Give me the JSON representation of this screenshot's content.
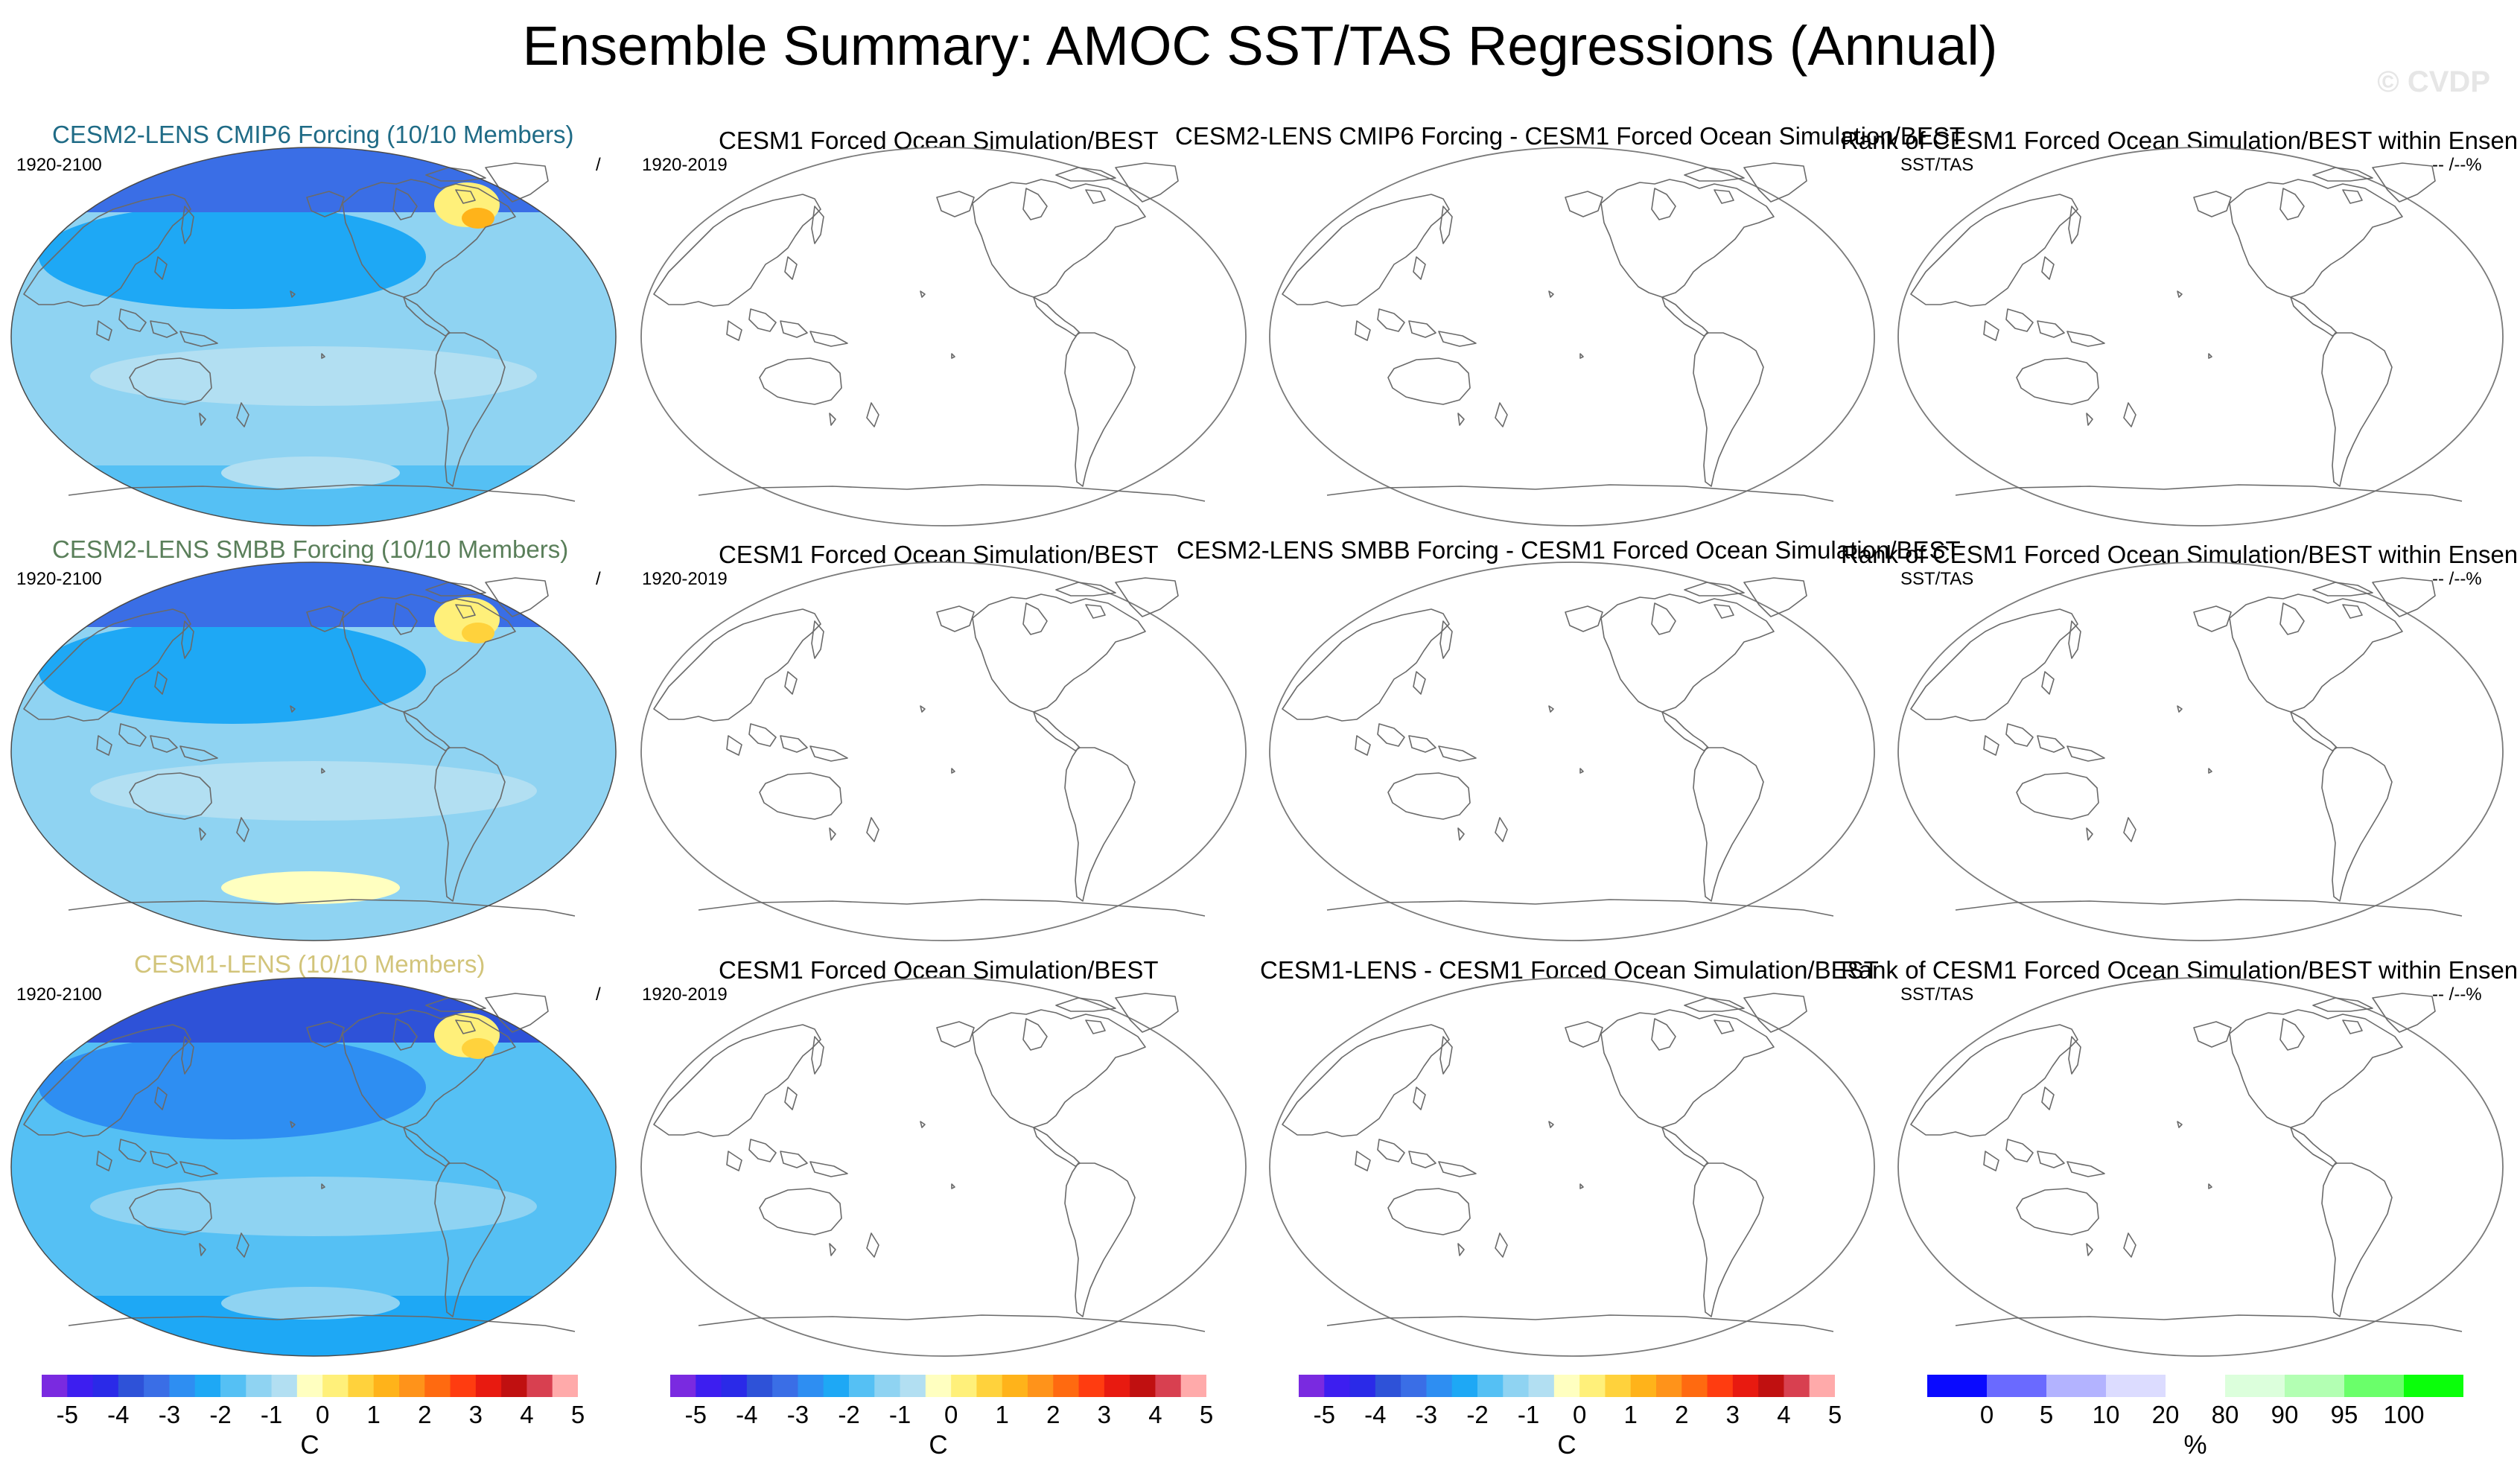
{
  "title": "Ensemble Summary: AMOC SST/TAS Regressions (Annual)",
  "watermark": "© CVDP",
  "rows": [
    {
      "ensemble_title": "CESM2-LENS CMIP6 Forcing (10/10 Members)",
      "ensemble_title_color": "#1f6b86",
      "ensemble_years": "1920-2100",
      "ensemble_right_label": "/",
      "obs_title": "CESM1 Forced Ocean Simulation/BEST",
      "obs_years": "1920-2019",
      "diff_title": "CESM2-LENS CMIP6 Forcing - CESM1 Forced Ocean Simulation/BEST",
      "rank_title": "Rank of CESM1 Forced Ocean Simulation/BEST within Ensen",
      "rank_left_label": "SST/TAS",
      "rank_right_label": "-- /--%"
    },
    {
      "ensemble_title": "CESM2-LENS SMBB Forcing (10/10 Members)",
      "ensemble_title_color": "#5a7f5a",
      "ensemble_years": "1920-2100",
      "ensemble_right_label": "/",
      "obs_title": "CESM1 Forced Ocean Simulation/BEST",
      "obs_years": "1920-2019",
      "diff_title": "CESM2-LENS SMBB Forcing - CESM1 Forced Ocean Simulation/BEST",
      "rank_title": "Rank of CESM1 Forced Ocean Simulation/BEST within Ensen",
      "rank_left_label": "SST/TAS",
      "rank_right_label": "-- /--%"
    },
    {
      "ensemble_title": "CESM1-LENS (10/10 Members)",
      "ensemble_title_color": "#d2c47a",
      "ensemble_years": "1920-2100",
      "ensemble_right_label": "/",
      "obs_title": "CESM1 Forced Ocean Simulation/BEST",
      "obs_years": "1920-2019",
      "diff_title": "CESM1-LENS - CESM1 Forced Ocean Simulation/BEST",
      "rank_title": "Rank of CESM1 Forced Ocean Simulation/BEST within Ensen",
      "rank_left_label": "SST/TAS",
      "rank_right_label": "-- /--%"
    }
  ],
  "colorbars": {
    "regression": {
      "unit": "C",
      "ticks": [
        "-5",
        "-4",
        "-3",
        "-2",
        "-1",
        "0",
        "1",
        "2",
        "3",
        "4",
        "5"
      ],
      "colors": [
        "#7a2ae0",
        "#3d1ef0",
        "#2a2ae8",
        "#2e52d8",
        "#3a6ee6",
        "#2e8ef2",
        "#1ea8f5",
        "#55c0f4",
        "#8fd3f2",
        "#b2dff2",
        "#ffffc0",
        "#fff07a",
        "#ffd23c",
        "#ffb31a",
        "#ff931a",
        "#ff6a10",
        "#ff3c10",
        "#e81a10",
        "#c01010",
        "#d84050",
        "#ffaaaa"
      ]
    },
    "rank": {
      "unit": "%",
      "ticks": [
        "0",
        "5",
        "10",
        "20",
        "80",
        "90",
        "95",
        "100"
      ],
      "colors": [
        "#0a0aff",
        "#6a6aff",
        "#b3b3ff",
        "#dcdcff",
        "#ffffff",
        "#dcffdc",
        "#b3ffb3",
        "#6aff6a",
        "#0aff0a"
      ]
    }
  },
  "chart_data": [
    {
      "type": "heatmap",
      "title": "CESM2-LENS CMIP6 Forcing (10/10 Members)",
      "period": "1920-2100",
      "variable": "AMOC SST/TAS regression",
      "units": "C",
      "color_range": [
        -5,
        5
      ],
      "summary": {
        "global_typical": -1.0,
        "north_pacific_subpolar": -2.0,
        "high_latitude_arctic": -3.0,
        "southern_ocean": -1.5,
        "north_atlantic_labrador_max": 0.7
      }
    },
    {
      "type": "heatmap",
      "title": "CESM2-LENS SMBB Forcing (10/10 Members)",
      "period": "1920-2100",
      "variable": "AMOC SST/TAS regression",
      "units": "C",
      "color_range": [
        -5,
        5
      ],
      "summary": {
        "global_typical": -1.0,
        "north_pacific_subpolar": -2.0,
        "high_latitude_arctic": -3.0,
        "southern_ocean": -1.0,
        "north_atlantic_labrador_max": 0.6
      }
    },
    {
      "type": "heatmap",
      "title": "CESM1-LENS (10/10 Members)",
      "period": "1920-2100",
      "variable": "AMOC SST/TAS regression",
      "units": "C",
      "color_range": [
        -5,
        5
      ],
      "summary": {
        "global_typical": -1.5,
        "north_pacific_subpolar": -2.5,
        "high_latitude_arctic": -3.5,
        "southern_ocean": -2.0,
        "north_atlantic_labrador_max": 0.3
      }
    }
  ]
}
